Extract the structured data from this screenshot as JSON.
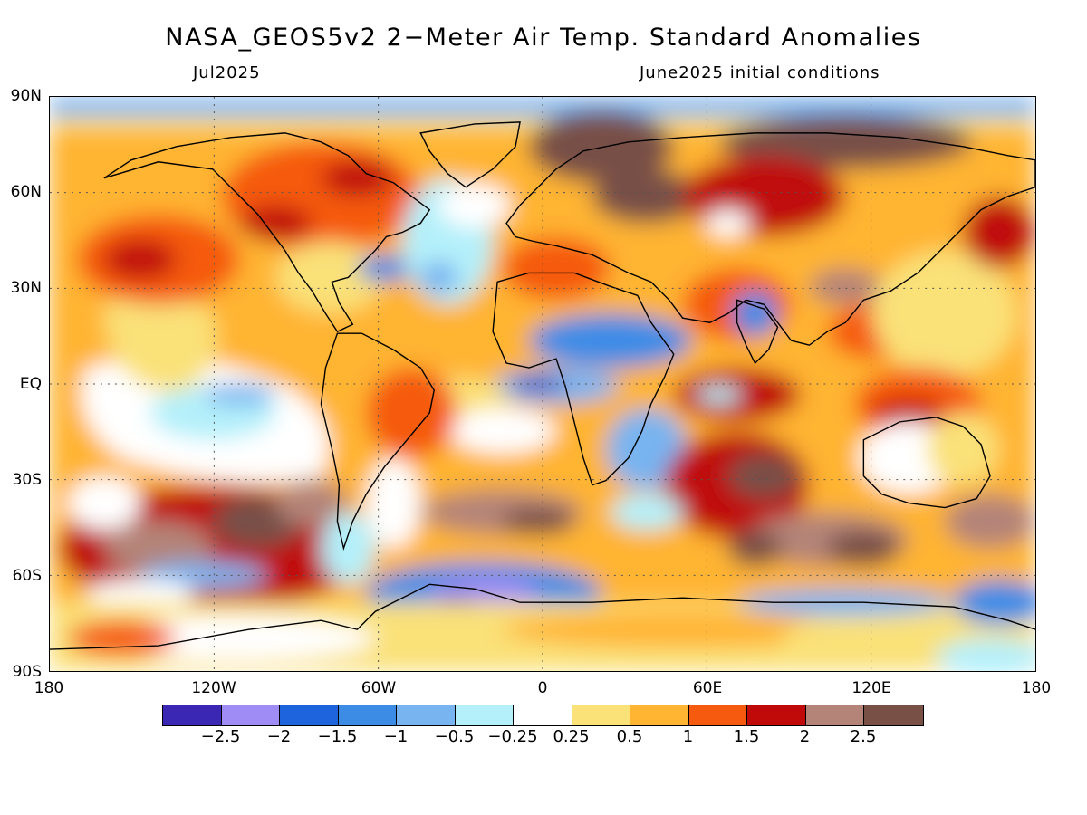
{
  "title": "NASA_GEOS5v2 2−Meter Air Temp. Standard Anomalies",
  "subtitle_left": "Jul2025",
  "subtitle_right": "June2025 initial conditions",
  "map": {
    "projection": "equirectangular",
    "lon_range": [
      -180,
      180
    ],
    "lat_range": [
      -90,
      90
    ],
    "lat_labels": [
      "90N",
      "60N",
      "30N",
      "EQ",
      "30S",
      "60S",
      "90S"
    ],
    "lon_labels": [
      "180",
      "120W",
      "60W",
      "0",
      "60E",
      "120E",
      "180"
    ],
    "grid_lines": "dotted"
  },
  "colorbar": {
    "colors": [
      "#3a28b4",
      "#a08cf5",
      "#1e64dc",
      "#3c8ce6",
      "#78b4f0",
      "#b4f0fa",
      "#ffffff",
      "#fae178",
      "#ffb432",
      "#f55a0f",
      "#c00a0a",
      "#b48478",
      "#785046"
    ],
    "labels": [
      "−2.5",
      "−2",
      "−1.5",
      "−1",
      "−0.5",
      "−0.25",
      "0.25",
      "0.5",
      "1",
      "1.5",
      "2",
      "2.5"
    ]
  }
}
